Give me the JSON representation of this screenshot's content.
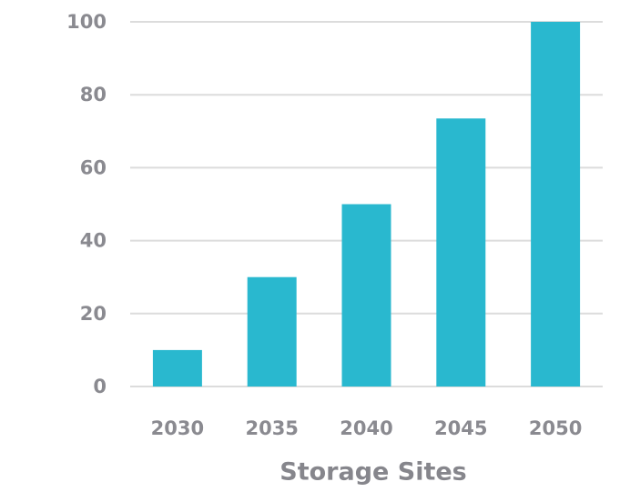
{
  "chart_data": {
    "type": "bar",
    "x_label": "Storage Sites",
    "categories": [
      "2030",
      "2035",
      "2040",
      "2045",
      "2050"
    ],
    "values": [
      10,
      30,
      50,
      73.5,
      100
    ],
    "color": "#29b8cf",
    "ylim": [
      0,
      100
    ],
    "yticks": [
      0,
      20,
      40,
      60,
      80,
      100
    ],
    "grid": true
  }
}
